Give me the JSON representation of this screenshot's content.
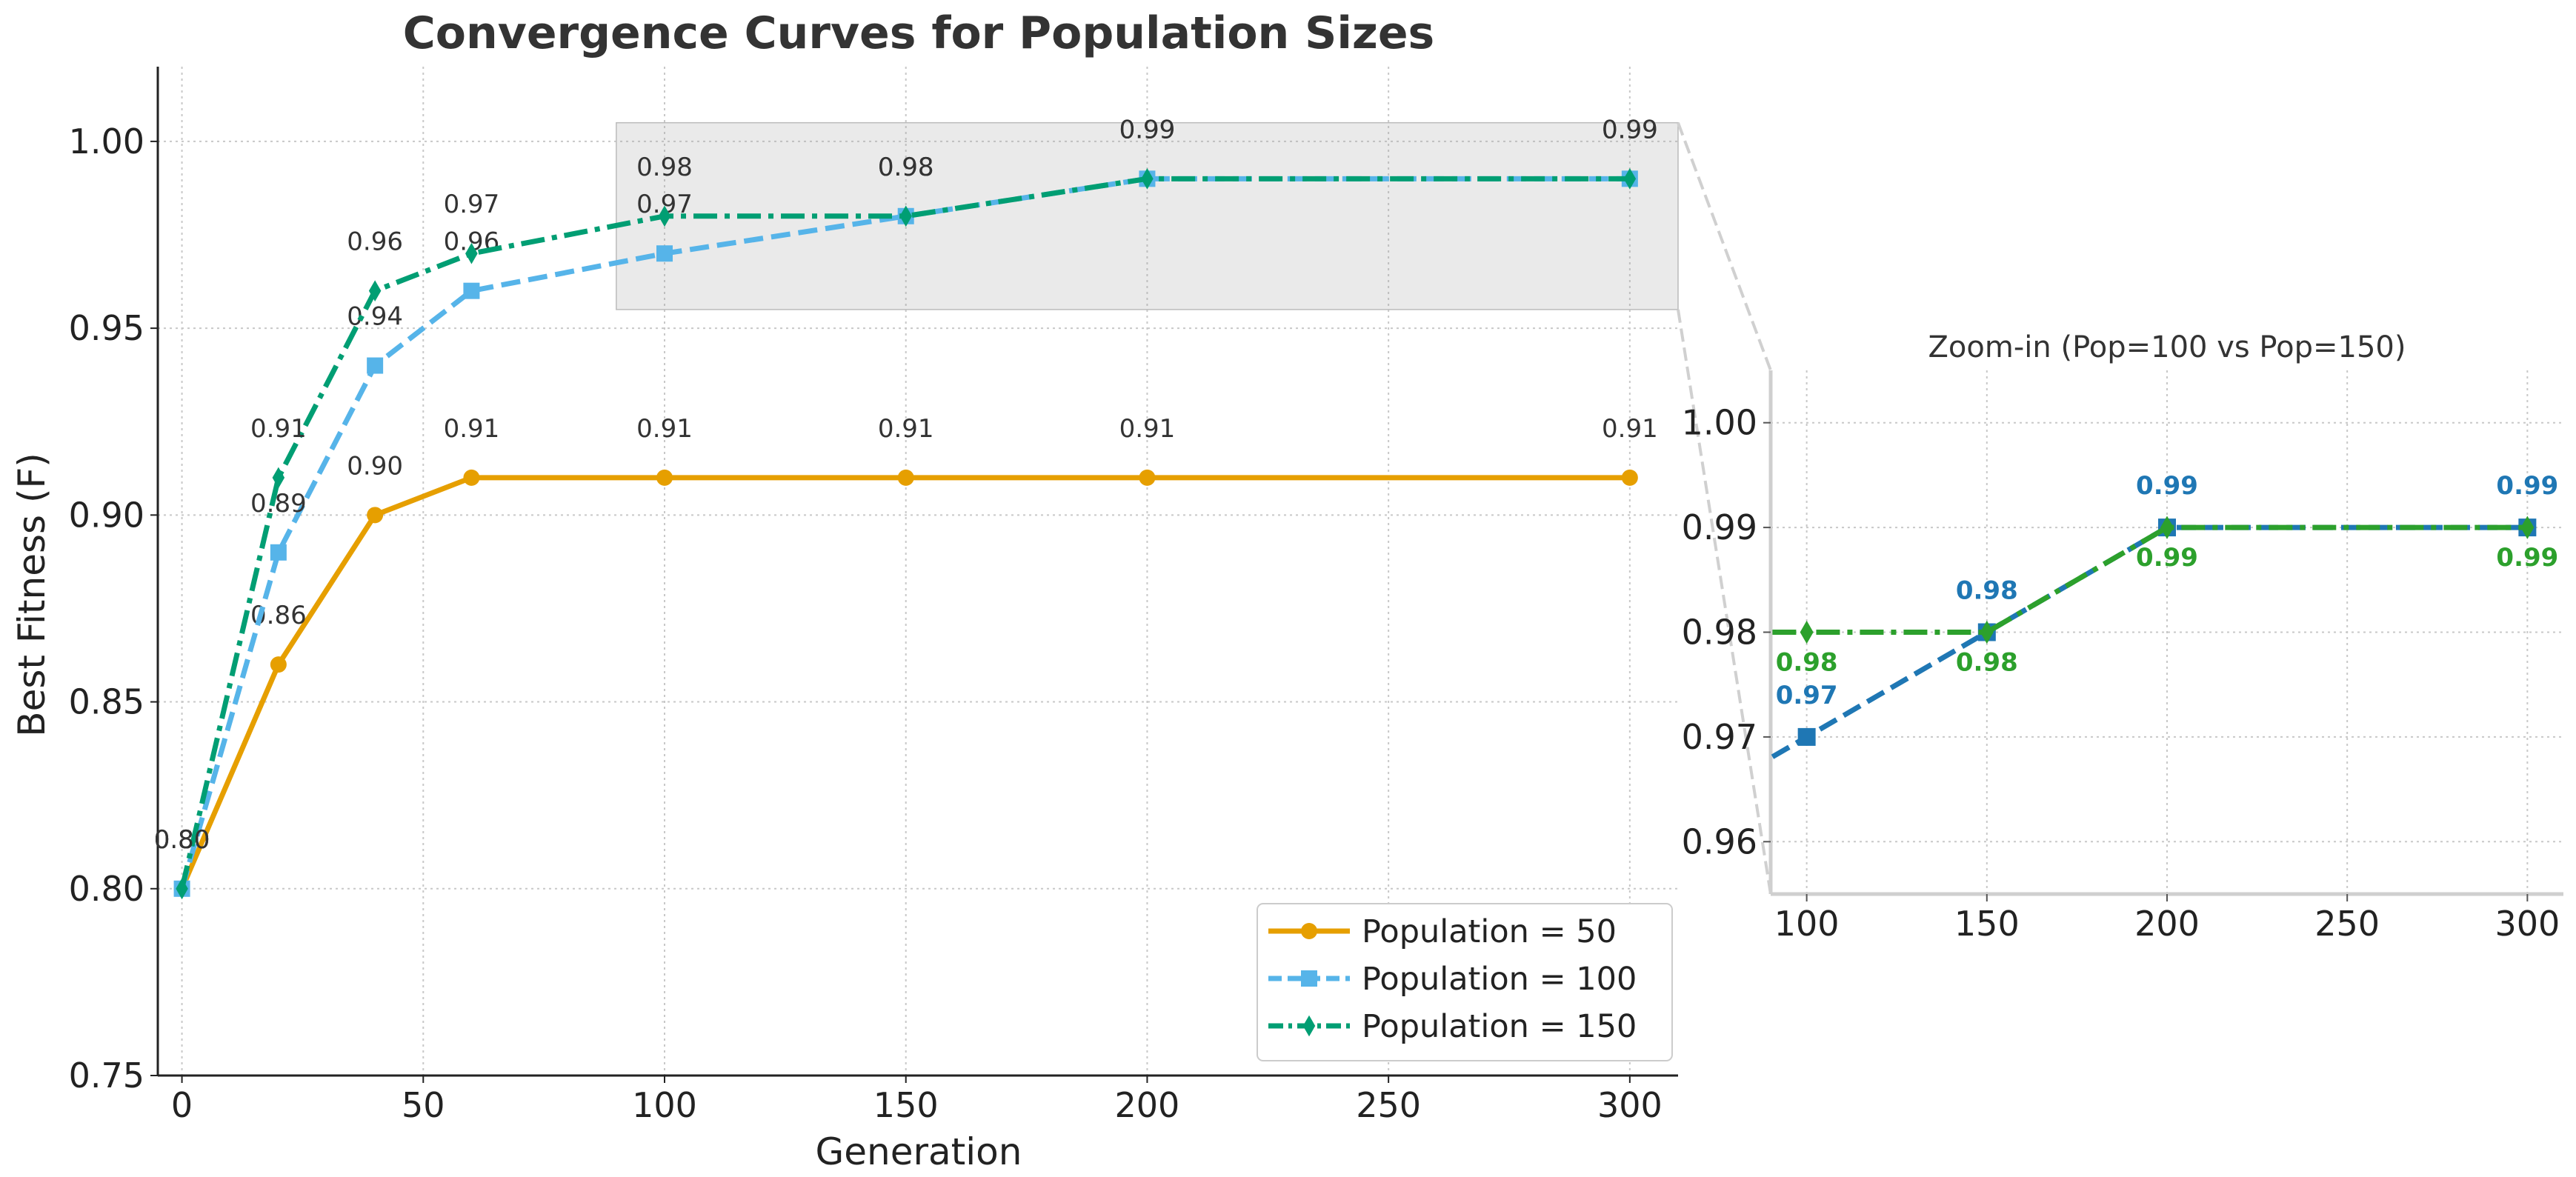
{
  "chart_data": [
    {
      "type": "line",
      "title": "Convergence Curves for Population Sizes",
      "xlabel": "Generation",
      "ylabel": "Best Fitness (F)",
      "xlim": [
        -5,
        310
      ],
      "ylim": [
        0.75,
        1.02
      ],
      "xticks": [
        "0",
        "50",
        "100",
        "150",
        "200",
        "250",
        "300"
      ],
      "yticks": [
        "0.75",
        "0.80",
        "0.85",
        "0.90",
        "0.95",
        "1.00"
      ],
      "grid": true,
      "legend_position": "bottom-right",
      "series": [
        {
          "name": "Population = 50",
          "color": "#E69F00",
          "marker": "circle",
          "linestyle": "solid",
          "x": [
            0,
            20,
            40,
            60,
            100,
            150,
            200,
            300
          ],
          "y": [
            0.8,
            0.86,
            0.9,
            0.91,
            0.91,
            0.91,
            0.91,
            0.91
          ],
          "labels": [
            "0.80",
            "0.86",
            "0.90",
            "0.91",
            "0.91",
            "0.91",
            "0.91",
            "0.91"
          ]
        },
        {
          "name": "Population = 100",
          "color": "#56B4E9",
          "marker": "square",
          "linestyle": "dashed",
          "x": [
            0,
            20,
            40,
            60,
            100,
            150,
            200,
            300
          ],
          "y": [
            0.8,
            0.89,
            0.94,
            0.96,
            0.97,
            0.98,
            0.99,
            0.99
          ],
          "labels": [
            "0.80",
            "0.89",
            "0.94",
            "0.96",
            "0.97",
            "0.98",
            "0.99",
            "0.99"
          ]
        },
        {
          "name": "Population = 150",
          "color": "#009E73",
          "marker": "diamond",
          "linestyle": "dashdot",
          "x": [
            0,
            20,
            40,
            60,
            100,
            150,
            200,
            300
          ],
          "y": [
            0.8,
            0.91,
            0.96,
            0.97,
            0.98,
            0.98,
            0.99,
            0.99
          ],
          "labels": [
            "0.80",
            "0.91",
            "0.96",
            "0.97",
            "0.98",
            "0.98",
            "0.99",
            "0.99"
          ]
        }
      ],
      "highlight_region": {
        "x": [
          90,
          310
        ],
        "y": [
          0.955,
          1.005
        ]
      }
    },
    {
      "type": "line",
      "title": "Zoom-in (Pop=100 vs Pop=150)",
      "xlim": [
        90,
        310
      ],
      "ylim": [
        0.955,
        1.005
      ],
      "xticks": [
        "100",
        "150",
        "200",
        "250",
        "300"
      ],
      "yticks": [
        "0.96",
        "0.97",
        "0.98",
        "0.99",
        "1.00"
      ],
      "grid": true,
      "series": [
        {
          "name": "Population = 100",
          "color": "#1F77B4",
          "marker": "square",
          "linestyle": "dashed",
          "x": [
            100,
            150,
            200,
            300
          ],
          "y": [
            0.97,
            0.98,
            0.99,
            0.99
          ],
          "labels": [
            "0.97",
            "0.98",
            "0.99",
            "0.99"
          ]
        },
        {
          "name": "Population = 150",
          "color": "#2CA02C",
          "marker": "diamond",
          "linestyle": "dashdot",
          "x": [
            100,
            150,
            200,
            300
          ],
          "y": [
            0.98,
            0.98,
            0.99,
            0.99
          ],
          "labels": [
            "0.98",
            "0.98",
            "0.99",
            "0.99"
          ]
        }
      ]
    }
  ]
}
